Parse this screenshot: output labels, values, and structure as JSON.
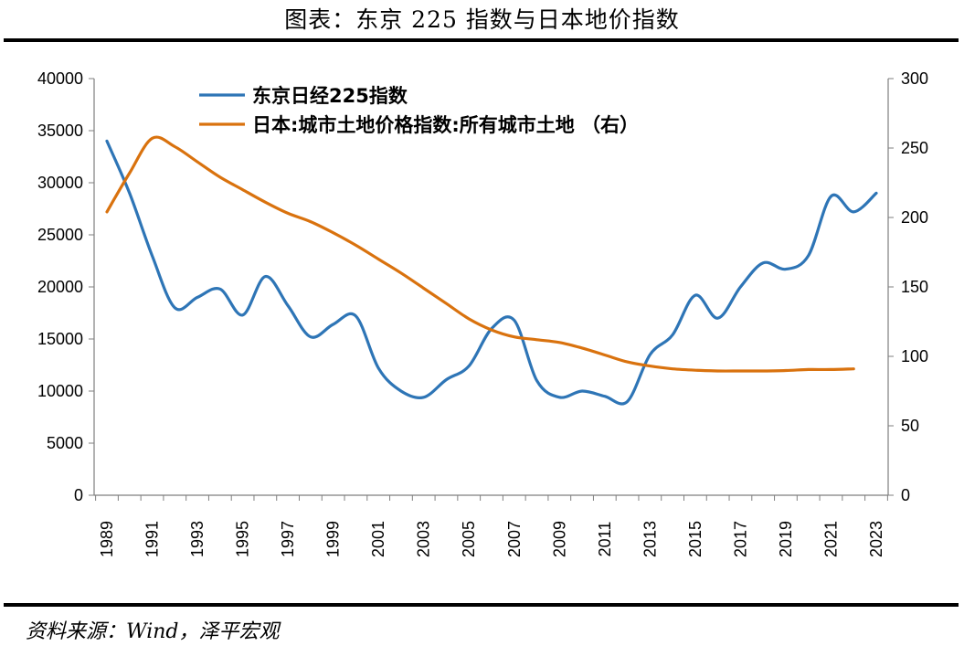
{
  "title": "图表：东京 225 指数与日本地价指数",
  "source": "资料来源：Wind，泽平宏观",
  "chart_data": {
    "type": "line",
    "legend_position": "top-left",
    "grid": false,
    "x_ticks": [
      "1989",
      "1991",
      "1993",
      "1995",
      "1997",
      "1999",
      "2001",
      "2003",
      "2005",
      "2007",
      "2009",
      "2011",
      "2013",
      "2015",
      "2017",
      "2019",
      "2021",
      "2023"
    ],
    "y_left": {
      "ticks": [
        "0",
        "5000",
        "10000",
        "15000",
        "20000",
        "25000",
        "30000",
        "35000",
        "40000"
      ],
      "range": [
        0,
        40000
      ]
    },
    "y_right": {
      "ticks": [
        "0",
        "50",
        "100",
        "150",
        "200",
        "250",
        "300"
      ],
      "range": [
        0,
        300
      ]
    },
    "series": [
      {
        "name": "东京日经225指数",
        "axis": "left",
        "color": "#2E75B6",
        "x": [
          1989,
          1990,
          1991,
          1992,
          1993,
          1994,
          1995,
          1996,
          1997,
          1998,
          1999,
          2000,
          2001,
          2002,
          2003,
          2004,
          2005,
          2006,
          2007,
          2008,
          2009,
          2010,
          2011,
          2012,
          2013,
          2014,
          2015,
          2016,
          2017,
          2018,
          2019,
          2020,
          2021,
          2022,
          2023
        ],
        "values": [
          34000,
          29000,
          23000,
          18000,
          19000,
          19800,
          17300,
          21000,
          18200,
          15200,
          16400,
          17200,
          12200,
          10000,
          9400,
          11100,
          12400,
          16000,
          16800,
          11000,
          9400,
          10000,
          9500,
          9000,
          13500,
          15400,
          19200,
          17000,
          20000,
          22300,
          21700,
          23000,
          28700,
          27200,
          29000
        ]
      },
      {
        "name": "日本:城市土地价格指数:所有城市土地 （右）",
        "axis": "right",
        "color": "#D9720E",
        "x": [
          1989,
          1990,
          1991,
          1992,
          1993,
          1994,
          1995,
          1996,
          1997,
          1998,
          1999,
          2000,
          2001,
          2002,
          2003,
          2004,
          2005,
          2006,
          2007,
          2008,
          2009,
          2010,
          2011,
          2012,
          2013,
          2014,
          2015,
          2016,
          2017,
          2018,
          2019,
          2020,
          2021,
          2022
        ],
        "values": [
          204,
          232,
          257,
          251,
          240,
          229,
          220,
          211,
          203,
          197,
          189,
          180,
          170,
          160,
          149,
          138,
          127,
          119,
          114,
          112,
          110,
          106,
          101,
          96,
          93,
          91,
          90,
          89.5,
          89.5,
          89.5,
          89.8,
          90.5,
          90.5,
          91
        ]
      }
    ]
  }
}
